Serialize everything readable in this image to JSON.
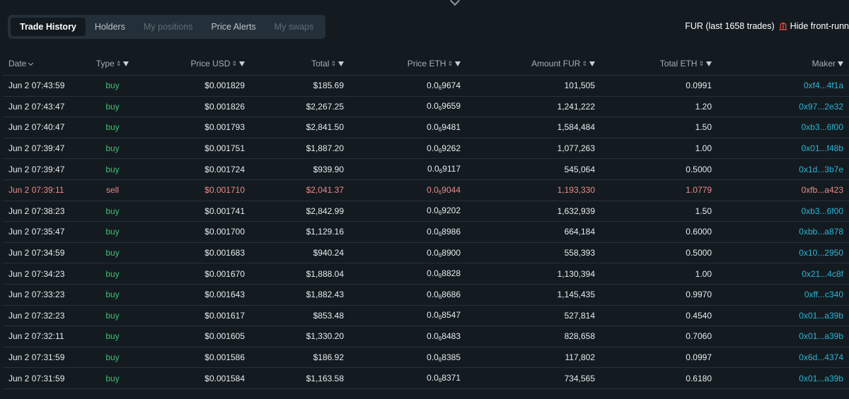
{
  "tabs": [
    {
      "label": "Trade History",
      "state": "active"
    },
    {
      "label": "Holders",
      "state": "normal"
    },
    {
      "label": "My positions",
      "state": "disabled"
    },
    {
      "label": "Price Alerts",
      "state": "normal"
    },
    {
      "label": "My swaps",
      "state": "disabled"
    }
  ],
  "summary": {
    "text": "FUR (last 1658 trades)",
    "hide_label": "Hide front-runn"
  },
  "columns": {
    "date": "Date",
    "type": "Type",
    "price_usd": "Price USD",
    "total": "Total",
    "price_eth": "Price ETH",
    "amount": "Amount FUR",
    "total_eth": "Total ETH",
    "maker": "Maker"
  },
  "rows": [
    {
      "date": "Jun 2 07:43:59",
      "type": "buy",
      "price_usd": "$0.001829",
      "total": "$185.69",
      "eth_pre": "0.0",
      "eth_sub": "6",
      "eth_post": "9674",
      "amount": "101,505",
      "total_eth": "0.0991",
      "maker": "0xf4...4f1a"
    },
    {
      "date": "Jun 2 07:43:47",
      "type": "buy",
      "price_usd": "$0.001826",
      "total": "$2,267.25",
      "eth_pre": "0.0",
      "eth_sub": "6",
      "eth_post": "9659",
      "amount": "1,241,222",
      "total_eth": "1.20",
      "maker": "0x97...2e32"
    },
    {
      "date": "Jun 2 07:40:47",
      "type": "buy",
      "price_usd": "$0.001793",
      "total": "$2,841.50",
      "eth_pre": "0.0",
      "eth_sub": "6",
      "eth_post": "9481",
      "amount": "1,584,484",
      "total_eth": "1.50",
      "maker": "0xb3...6f00"
    },
    {
      "date": "Jun 2 07:39:47",
      "type": "buy",
      "price_usd": "$0.001751",
      "total": "$1,887.20",
      "eth_pre": "0.0",
      "eth_sub": "6",
      "eth_post": "9262",
      "amount": "1,077,263",
      "total_eth": "1.00",
      "maker": "0x01...f48b"
    },
    {
      "date": "Jun 2 07:39:47",
      "type": "buy",
      "price_usd": "$0.001724",
      "total": "$939.90",
      "eth_pre": "0.0",
      "eth_sub": "6",
      "eth_post": "9117",
      "amount": "545,064",
      "total_eth": "0.5000",
      "maker": "0x1d...3b7e"
    },
    {
      "date": "Jun 2 07:39:11",
      "type": "sell",
      "price_usd": "$0.001710",
      "total": "$2,041.37",
      "eth_pre": "0.0",
      "eth_sub": "6",
      "eth_post": "9044",
      "amount": "1,193,330",
      "total_eth": "1.0779",
      "maker": "0xfb...a423"
    },
    {
      "date": "Jun 2 07:38:23",
      "type": "buy",
      "price_usd": "$0.001741",
      "total": "$2,842.99",
      "eth_pre": "0.0",
      "eth_sub": "6",
      "eth_post": "9202",
      "amount": "1,632,939",
      "total_eth": "1.50",
      "maker": "0xb3...6f00"
    },
    {
      "date": "Jun 2 07:35:47",
      "type": "buy",
      "price_usd": "$0.001700",
      "total": "$1,129.16",
      "eth_pre": "0.0",
      "eth_sub": "6",
      "eth_post": "8986",
      "amount": "664,184",
      "total_eth": "0.6000",
      "maker": "0xbb...a878"
    },
    {
      "date": "Jun 2 07:34:59",
      "type": "buy",
      "price_usd": "$0.001683",
      "total": "$940.24",
      "eth_pre": "0.0",
      "eth_sub": "6",
      "eth_post": "8900",
      "amount": "558,393",
      "total_eth": "0.5000",
      "maker": "0x10...2950"
    },
    {
      "date": "Jun 2 07:34:23",
      "type": "buy",
      "price_usd": "$0.001670",
      "total": "$1,888.04",
      "eth_pre": "0.0",
      "eth_sub": "6",
      "eth_post": "8828",
      "amount": "1,130,394",
      "total_eth": "1.00",
      "maker": "0x21...4c8f"
    },
    {
      "date": "Jun 2 07:33:23",
      "type": "buy",
      "price_usd": "$0.001643",
      "total": "$1,882.43",
      "eth_pre": "0.0",
      "eth_sub": "6",
      "eth_post": "8686",
      "amount": "1,145,435",
      "total_eth": "0.9970",
      "maker": "0xff...c340"
    },
    {
      "date": "Jun 2 07:32:23",
      "type": "buy",
      "price_usd": "$0.001617",
      "total": "$853.48",
      "eth_pre": "0.0",
      "eth_sub": "6",
      "eth_post": "8547",
      "amount": "527,814",
      "total_eth": "0.4540",
      "maker": "0x01...a39b"
    },
    {
      "date": "Jun 2 07:32:11",
      "type": "buy",
      "price_usd": "$0.001605",
      "total": "$1,330.20",
      "eth_pre": "0.0",
      "eth_sub": "6",
      "eth_post": "8483",
      "amount": "828,658",
      "total_eth": "0.7060",
      "maker": "0x01...a39b"
    },
    {
      "date": "Jun 2 07:31:59",
      "type": "buy",
      "price_usd": "$0.001586",
      "total": "$186.92",
      "eth_pre": "0.0",
      "eth_sub": "6",
      "eth_post": "8385",
      "amount": "117,802",
      "total_eth": "0.0997",
      "maker": "0x6d...4374"
    },
    {
      "date": "Jun 2 07:31:59",
      "type": "buy",
      "price_usd": "$0.001584",
      "total": "$1,163.58",
      "eth_pre": "0.0",
      "eth_sub": "6",
      "eth_post": "8371",
      "amount": "734,565",
      "total_eth": "0.6180",
      "maker": "0x01...a39b"
    }
  ],
  "colors": {
    "buy": "#3fbf73",
    "sell": "#e07a7a",
    "maker": "#2bb5d8",
    "background": "#141b20"
  }
}
